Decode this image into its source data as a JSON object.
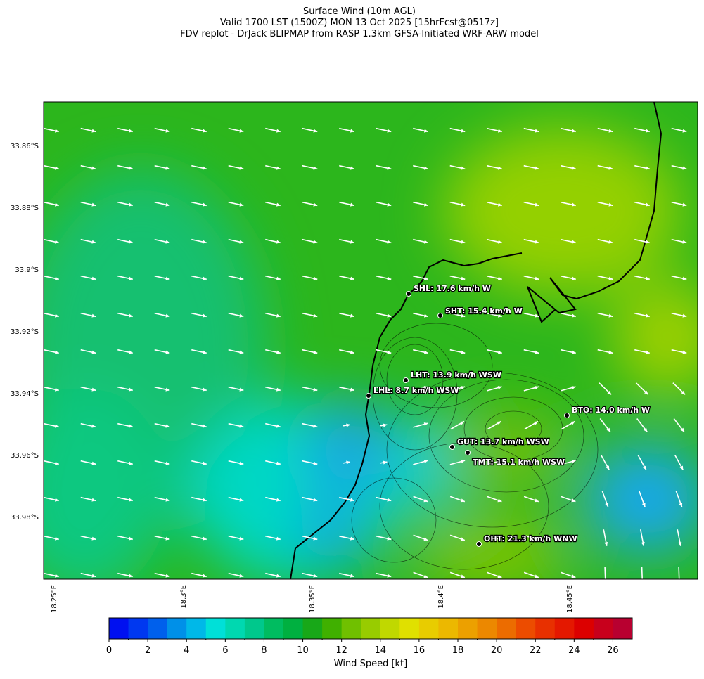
{
  "header": {
    "lines": [
      "Surface Wind (10m AGL)",
      "Valid 1700 LST (1500Z) MON 13 Oct 2025 [15hrFcst@0517z]",
      "FDV replot - DrJack BLIPMAP from RASP 1.3km GFSA-Initiated WRF-ARW model"
    ]
  },
  "map": {
    "lat_labels": [
      "33.86°S",
      "33.88°S",
      "33.9°S",
      "33.92°S",
      "33.94°S",
      "33.96°S",
      "33.98°S"
    ],
    "lon_labels": [
      "18.25°E",
      "18.3°E",
      "18.35°E",
      "18.4°E",
      "18.45°E"
    ],
    "stations": [
      {
        "label": "SHL: 17.6 km/h W"
      },
      {
        "label": "SHT: 15.4 km/h W"
      },
      {
        "label": "LHT: 13.9 km/h WSW"
      },
      {
        "label": "LHL: 8.7 km/h WSW"
      },
      {
        "label": "BTO: 14.0 km/h W"
      },
      {
        "label": "GUT: 13.7 km/h WSW"
      },
      {
        "label": "TMT: 15.1 km/h WSW"
      },
      {
        "label": "OHT: 21.3 km/h WNW"
      }
    ]
  },
  "colorbar": {
    "label": "Wind Speed [kt]",
    "lim": [
      0,
      27
    ],
    "ticks": [
      0,
      2,
      4,
      6,
      8,
      10,
      12,
      14,
      16,
      18,
      20,
      22,
      24,
      26
    ],
    "colors": [
      "#0010f0",
      "#0038f0",
      "#0060ec",
      "#0090e8",
      "#00b8e8",
      "#00e0d8",
      "#00d8b0",
      "#00c88c",
      "#00bc60",
      "#00b040",
      "#18a818",
      "#40b000",
      "#70c000",
      "#98cc00",
      "#c0d800",
      "#e0e000",
      "#e8cc00",
      "#ecb800",
      "#eca000",
      "#ec8800",
      "#ec6c00",
      "#ec4c00",
      "#e83000",
      "#e41800",
      "#dc0000",
      "#c8001c",
      "#b80030"
    ]
  }
}
